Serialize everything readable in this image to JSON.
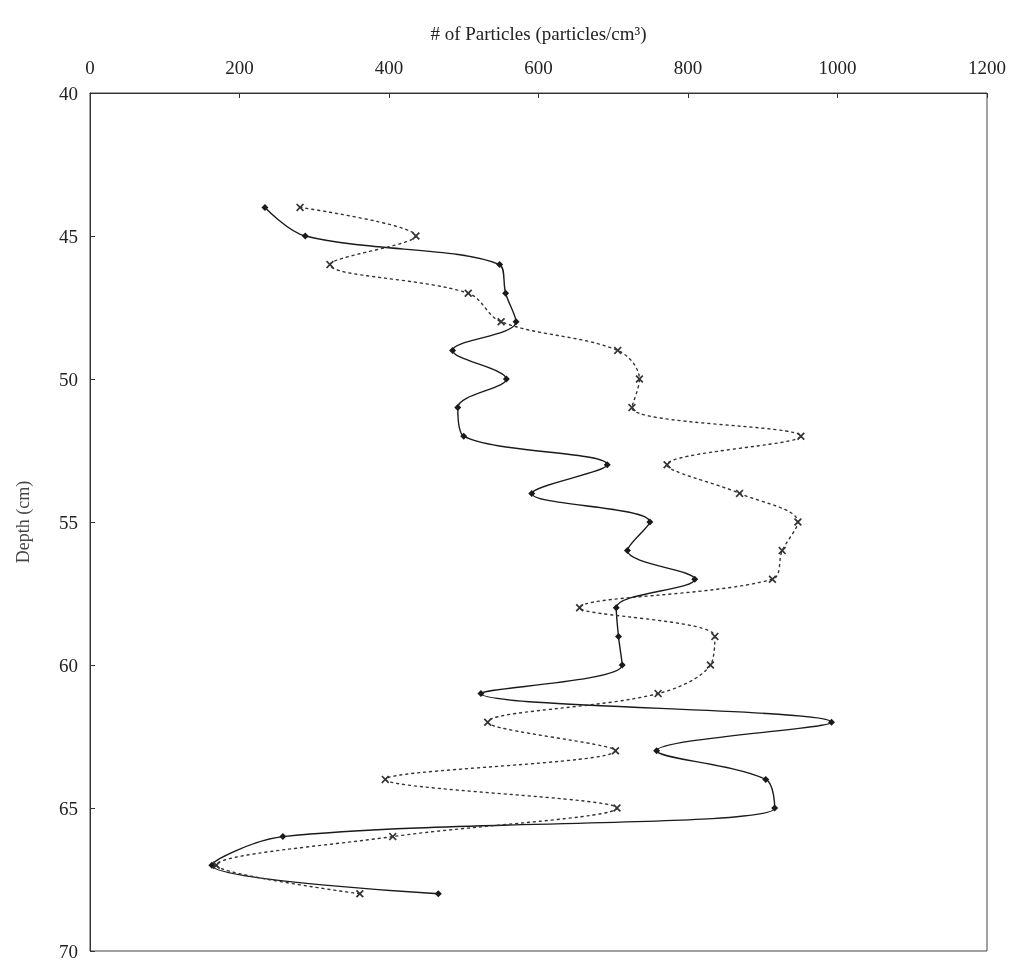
{
  "chart_data": {
    "type": "line",
    "xlabel": "# of Particles (particles/cm³)",
    "ylabel": "Depth (cm)",
    "xlim": [
      0,
      1200
    ],
    "xticks": [
      0,
      200,
      400,
      600,
      800,
      1000,
      1200
    ],
    "ylim": [
      70,
      40
    ],
    "yticks": [
      40,
      45,
      50,
      55,
      60,
      65,
      70
    ],
    "grid": false,
    "series": [
      {
        "color": "#1a1a1a",
        "marker": "diamond",
        "line_style": "solid",
        "x": [
          234,
          288,
          548,
          556,
          570,
          485,
          557,
          492,
          500,
          692,
          591,
          749,
          719,
          809,
          704,
          707,
          712,
          523,
          992,
          758,
          904,
          916,
          258,
          163,
          466
        ],
        "values": [
          44,
          45,
          46,
          47,
          48,
          49,
          50,
          51,
          52,
          53,
          54,
          55,
          56,
          57,
          58,
          59,
          60,
          61,
          62,
          63,
          64,
          65,
          66,
          67,
          68
        ]
      },
      {
        "color": "#333333",
        "marker": "cross",
        "line_style": "dotted",
        "x": [
          281,
          436,
          321,
          506,
          550,
          706,
          735,
          725,
          951,
          772,
          869,
          947,
          926,
          913,
          655,
          836,
          830,
          760,
          532,
          703,
          395,
          705,
          405,
          169,
          361
        ],
        "values": [
          44,
          45,
          46,
          47,
          48,
          49,
          50,
          51,
          52,
          53,
          54,
          55,
          56,
          57,
          58,
          59,
          60,
          61,
          62,
          63,
          64,
          65,
          66,
          67,
          68
        ]
      }
    ]
  }
}
